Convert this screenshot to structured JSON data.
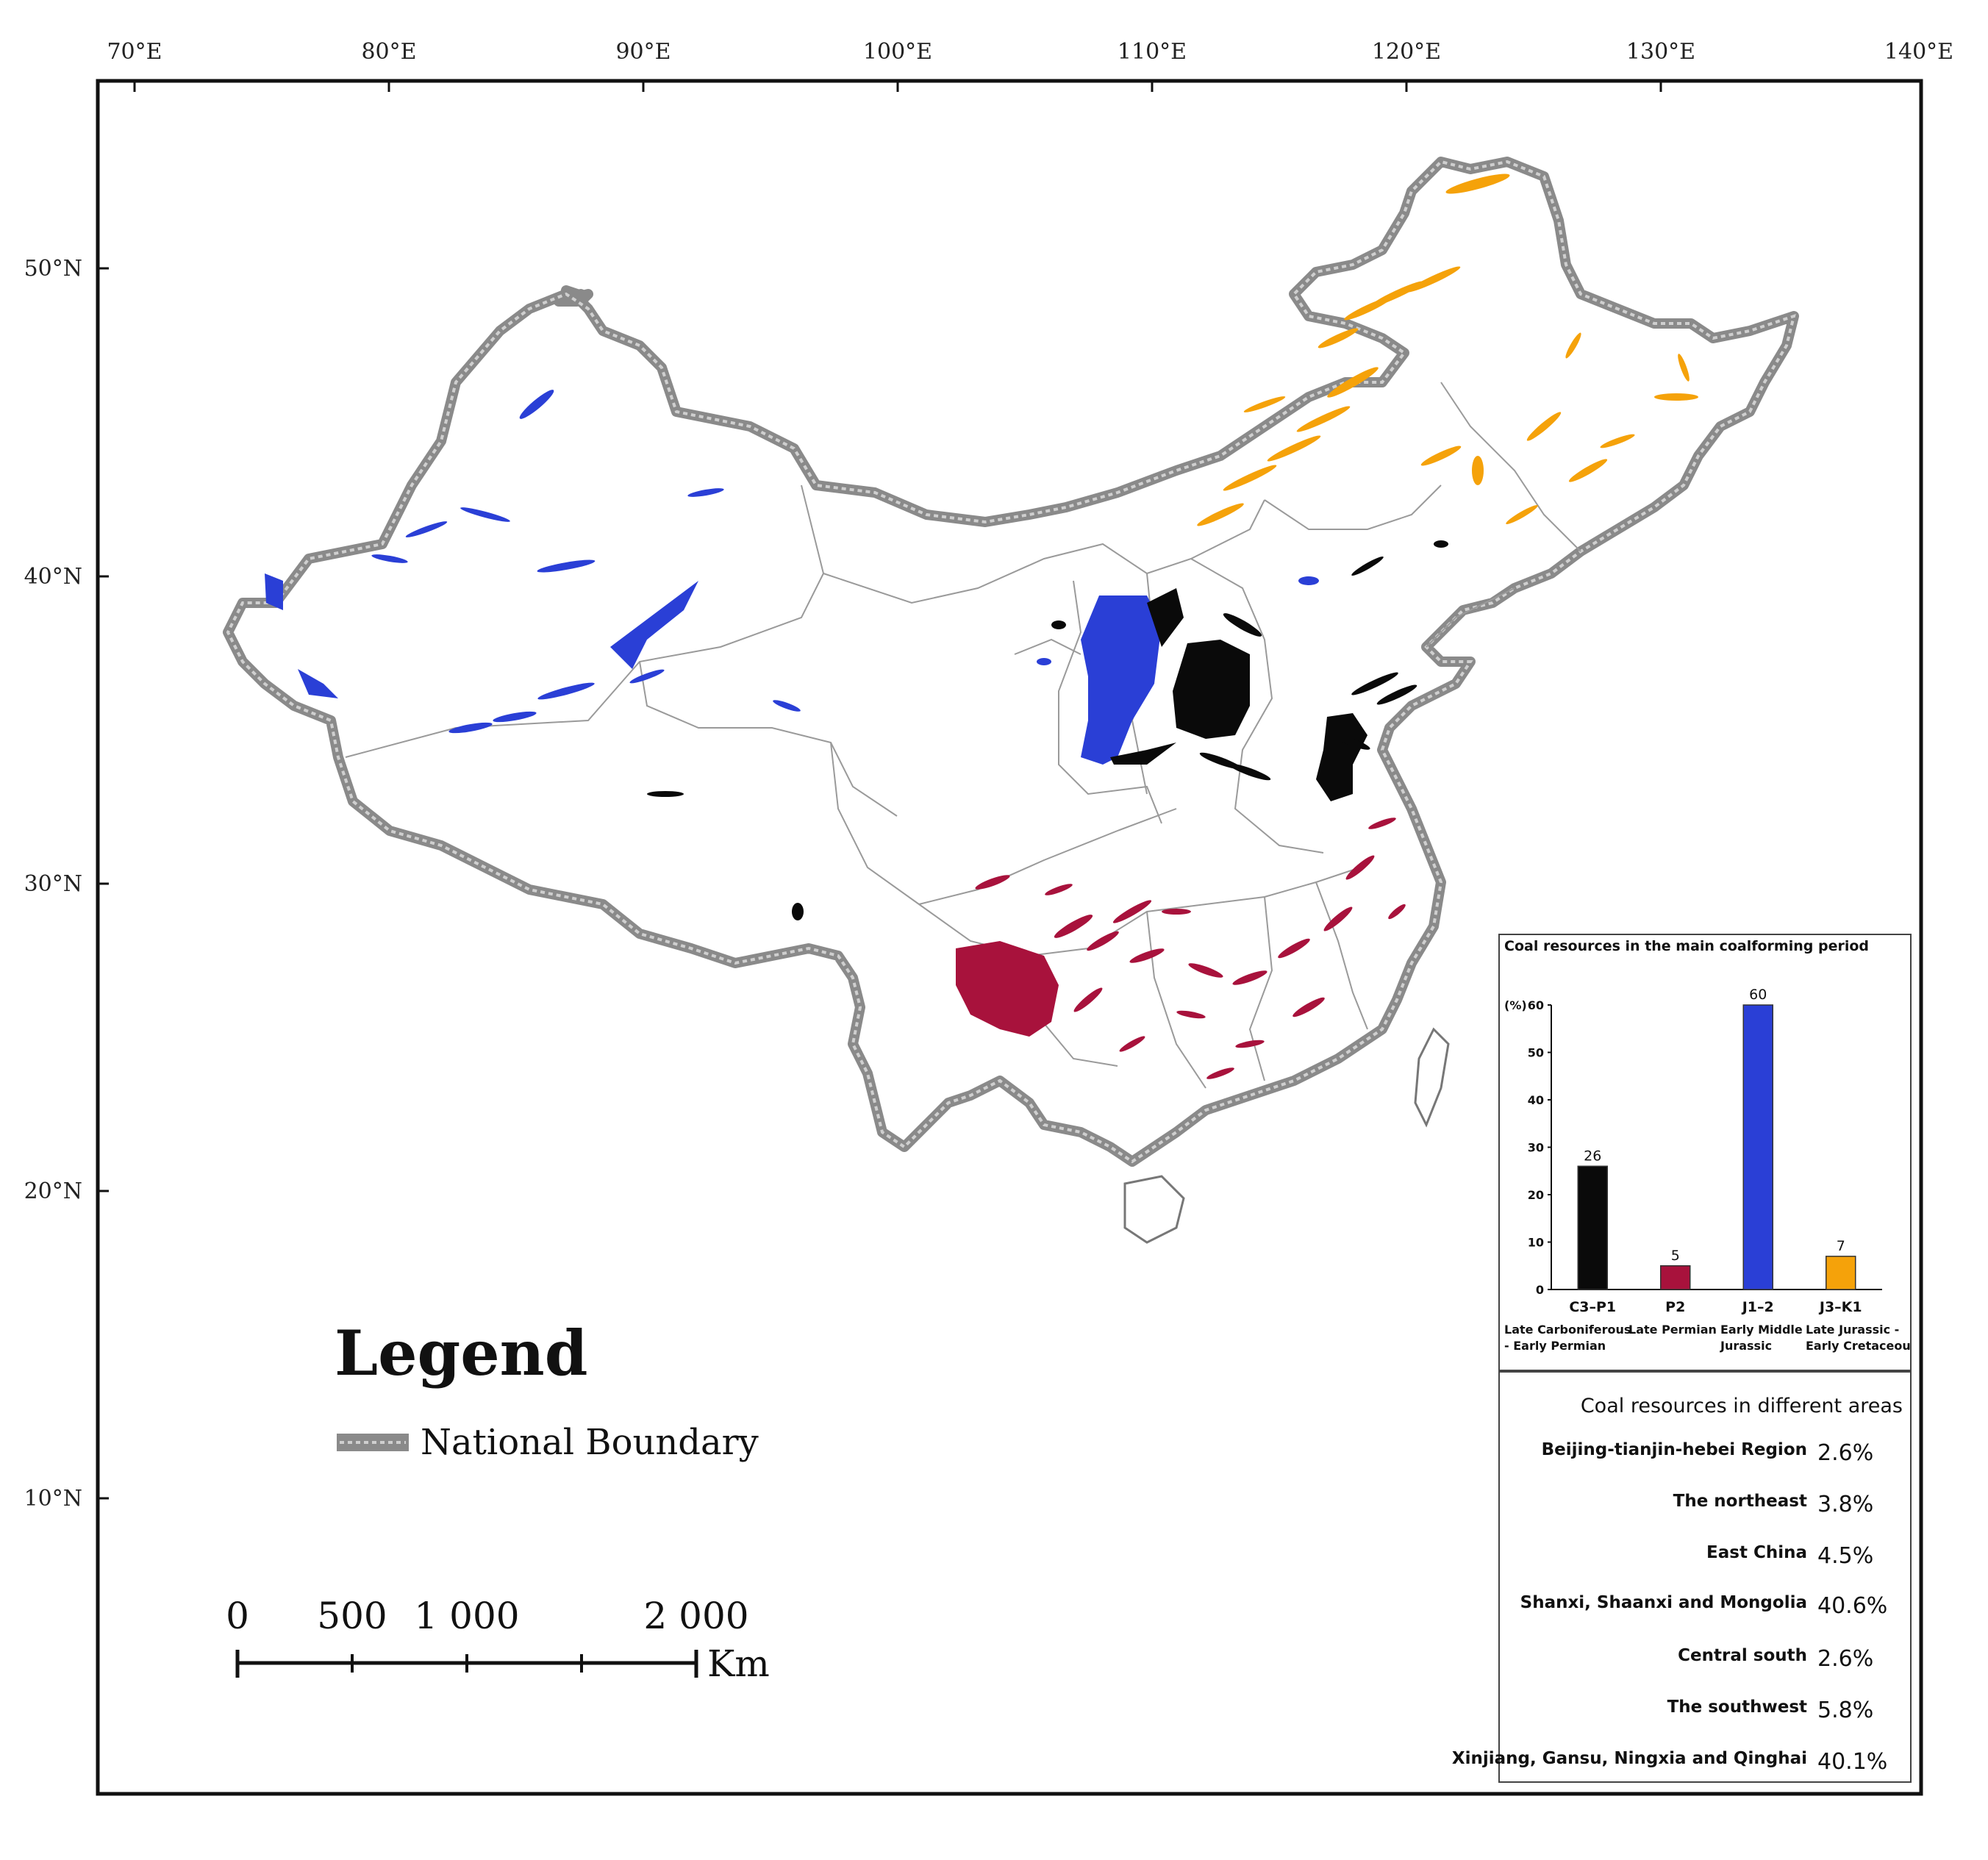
{
  "map": {
    "lon_labels": [
      "70°E",
      "80°E",
      "90°E",
      "100°E",
      "110°E",
      "120°E",
      "130°E",
      "140°E"
    ],
    "lat_labels": [
      "50°N",
      "40°N",
      "30°N",
      "20°N",
      "10°N"
    ],
    "legend": {
      "title": "Legend",
      "boundary_label": "National Boundary"
    },
    "scale_bar": {
      "labels": [
        "0",
        "500",
        "1 000",
        "2 000"
      ],
      "unit": "Km"
    },
    "colors": {
      "late_carboniferous_early_permian": "#0a0a0a",
      "late_permian": "#a8123c",
      "early_middle_jurassic": "#2a3fd6",
      "late_jurassic_early_cretaceous": "#f5a20a",
      "boundary": "#8a8a8a"
    }
  },
  "chart_data": {
    "type": "bar",
    "title": "Coal resources in the main coalforming period",
    "ylabel": "(%)",
    "ylim": [
      0,
      60
    ],
    "yticks": [
      "0",
      "10",
      "20",
      "30",
      "40",
      "50",
      "60"
    ],
    "categories": [
      "C3–P1",
      "P2",
      "J1–2",
      "J3–K1"
    ],
    "periods": [
      "Late Carboniferous - Early Permian",
      "Late Permian",
      "Early Middle Jurassic",
      "Late Jurassic - Early Cretaceous"
    ],
    "values": [
      26,
      5,
      60,
      7
    ],
    "colors": [
      "#0a0a0a",
      "#a8123c",
      "#2a3fd6",
      "#f5a20a"
    ]
  },
  "areas": {
    "title": "Coal resources in different areas",
    "rows": [
      {
        "name": "Beijing-tianjin-hebei Region",
        "value": "2.6%"
      },
      {
        "name": "The northeast",
        "value": "3.8%"
      },
      {
        "name": "East China",
        "value": "4.5%"
      },
      {
        "name": "Shanxi, Shaanxi and Mongolia",
        "value": "40.6%"
      },
      {
        "name": "Central south",
        "value": "2.6%"
      },
      {
        "name": "The southwest",
        "value": "5.8%"
      },
      {
        "name": "Xinjiang, Gansu, Ningxia and Qinghai",
        "value": "40.1%"
      }
    ]
  }
}
